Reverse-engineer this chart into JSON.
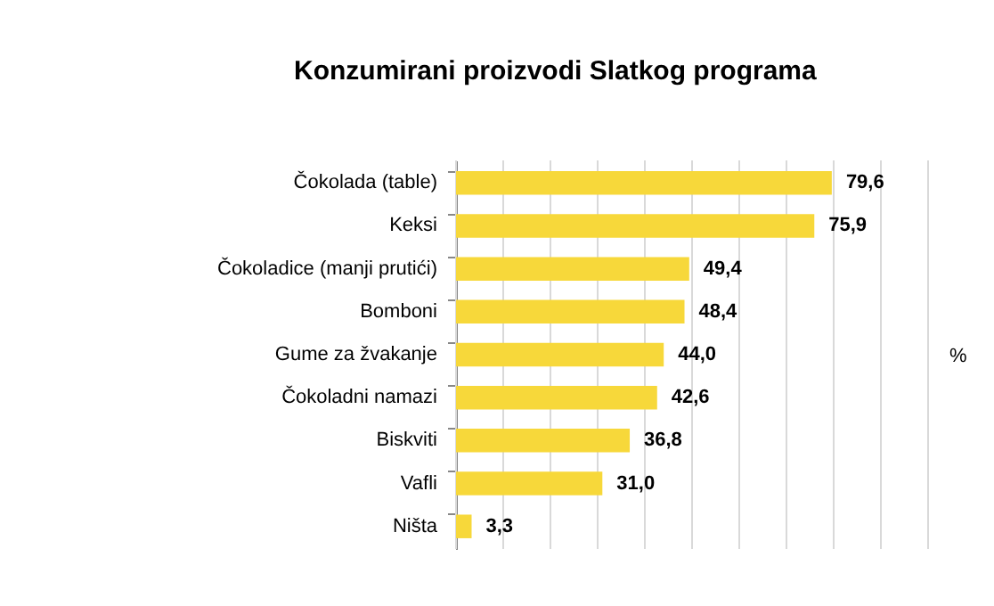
{
  "chart_data": {
    "type": "bar",
    "orientation": "horizontal",
    "title": "Konzumirani proizvodi Slatkog programa",
    "categories": [
      "Čokolada (table)",
      "Keksi",
      "Čokoladice (manji prutići)",
      "Bomboni",
      "Gume za žvakanje",
      "Čokoladni namazi",
      "Biskviti",
      "Vafli",
      "Ništa"
    ],
    "values": [
      79.6,
      75.9,
      49.4,
      48.4,
      44.0,
      42.6,
      36.8,
      31.0,
      3.3
    ],
    "value_labels": [
      "79,6",
      "75,9",
      "49,4",
      "48,4",
      "44,0",
      "42,6",
      "36,8",
      "31,0",
      "3,3"
    ],
    "color": "#f7d83a",
    "xlim": [
      0,
      100
    ],
    "xticks": [
      {
        "value": 0,
        "label": null
      },
      {
        "value": 10,
        "label": null
      },
      {
        "value": 20,
        "label": null
      },
      {
        "value": 30,
        "label": null
      },
      {
        "value": 40,
        "label": null
      },
      {
        "value": 50,
        "label": null
      },
      {
        "value": 60,
        "label": null
      },
      {
        "value": 70,
        "label": null
      },
      {
        "value": 80,
        "label": null
      },
      {
        "value": 90,
        "label": null
      },
      {
        "value": 100,
        "label": null
      }
    ],
    "grid": "x",
    "tick_labels": "y",
    "annotations": [
      "%"
    ]
  }
}
